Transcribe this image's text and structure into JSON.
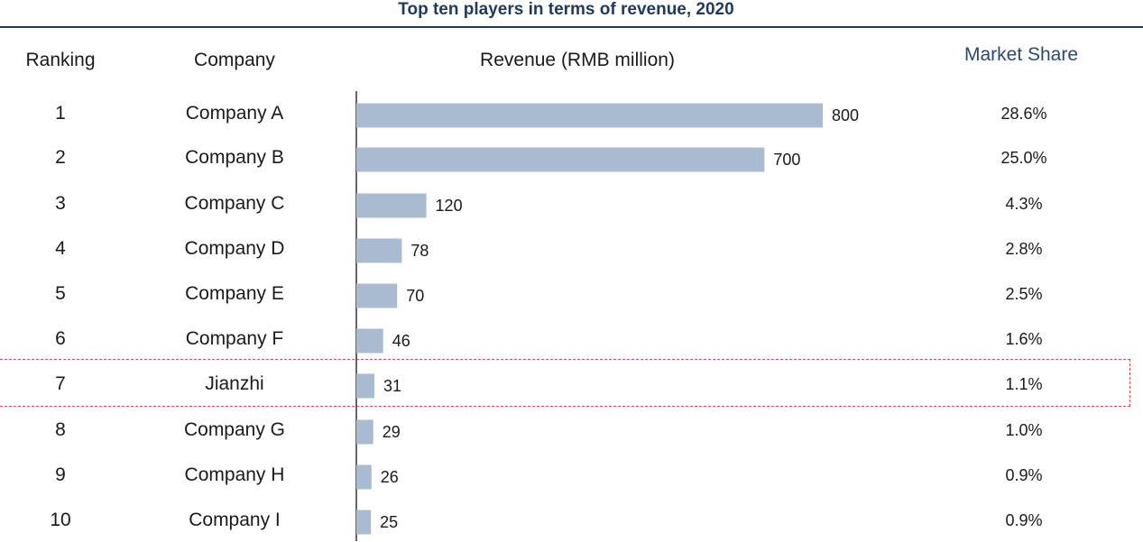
{
  "colors": {
    "title": "#1f3a5f",
    "rule": "#1f3a5f",
    "bar": "#a9bbd1",
    "header_share": "#2c4a6e"
  },
  "chart_data": {
    "type": "bar",
    "orientation": "horizontal",
    "title": "Top ten players in terms of revenue, 2020",
    "headers": {
      "ranking": "Ranking",
      "company": "Company",
      "revenue": "Revenue (RMB million)",
      "share": "Market Share"
    },
    "xlim": [
      0,
      800
    ],
    "highlight_index": 6,
    "rows": [
      {
        "rank": "1",
        "company": "Company A",
        "revenue": 800,
        "revenue_label": "800",
        "share": "28.6%"
      },
      {
        "rank": "2",
        "company": "Company B",
        "revenue": 700,
        "revenue_label": "700",
        "share": "25.0%"
      },
      {
        "rank": "3",
        "company": "Company C",
        "revenue": 120,
        "revenue_label": "120",
        "share": "4.3%"
      },
      {
        "rank": "4",
        "company": "Company D",
        "revenue": 78,
        "revenue_label": "78",
        "share": "2.8%"
      },
      {
        "rank": "5",
        "company": "Company E",
        "revenue": 70,
        "revenue_label": "70",
        "share": "2.5%"
      },
      {
        "rank": "6",
        "company": "Company F",
        "revenue": 46,
        "revenue_label": "46",
        "share": "1.6%"
      },
      {
        "rank": "7",
        "company": "Jianzhi",
        "revenue": 31,
        "revenue_label": "31",
        "share": "1.1%"
      },
      {
        "rank": "8",
        "company": "Company G",
        "revenue": 29,
        "revenue_label": "29",
        "share": "1.0%"
      },
      {
        "rank": "9",
        "company": "Company H",
        "revenue": 26,
        "revenue_label": "26",
        "share": "0.9%"
      },
      {
        "rank": "10",
        "company": "Company I",
        "revenue": 25,
        "revenue_label": "25",
        "share": "0.9%"
      }
    ]
  }
}
